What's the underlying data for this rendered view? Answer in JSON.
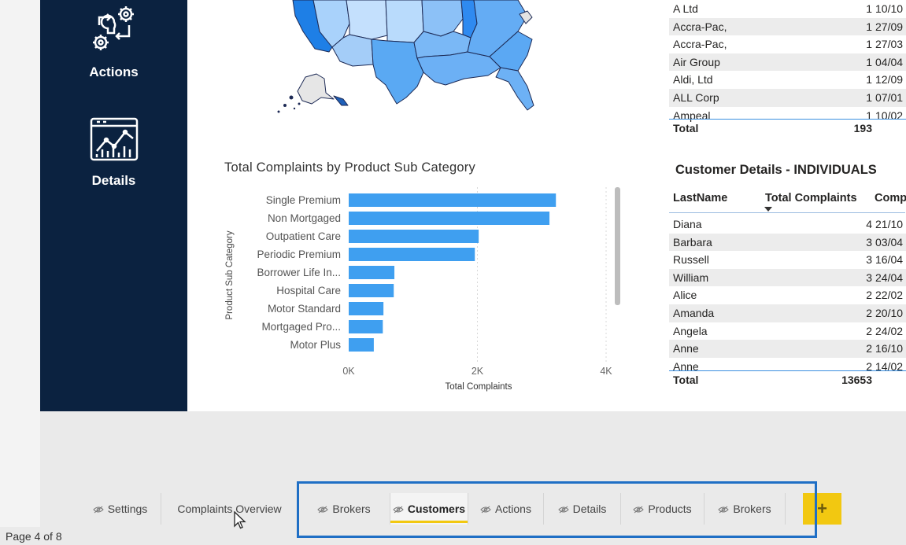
{
  "nav": {
    "actions_label": "Actions",
    "details_label": "Details"
  },
  "bar_chart": {
    "title": "Total Complaints by Product Sub Category"
  },
  "chart_data": {
    "type": "bar",
    "orientation": "horizontal",
    "title": "Total Complaints by Product Sub Category",
    "xlabel": "Total Complaints",
    "ylabel": "Product Sub Category",
    "categories": [
      "Single Premium",
      "Non Mortgaged",
      "Outpatient Care",
      "Periodic Premium",
      "Borrower Life In...",
      "Hospital Care",
      "Motor Standard",
      "Mortgaged Pro...",
      "Motor Plus"
    ],
    "values": [
      3220,
      3120,
      2020,
      1960,
      710,
      700,
      540,
      530,
      390
    ],
    "xticks": [
      "0K",
      "2K",
      "4K"
    ],
    "xlim": [
      0,
      4000
    ],
    "grid": true,
    "color": "#3f9ff0"
  },
  "company_table": {
    "rows": [
      {
        "name": "A Ltd",
        "count": "1",
        "date": "10/10"
      },
      {
        "name": "Accra-Pac,",
        "count": "1",
        "date": "27/09"
      },
      {
        "name": "Accra-Pac,",
        "count": "1",
        "date": "27/03"
      },
      {
        "name": "Air Group",
        "count": "1",
        "date": "04/04"
      },
      {
        "name": "Aldi, Ltd",
        "count": "1",
        "date": "12/09"
      },
      {
        "name": "ALL Corp",
        "count": "1",
        "date": "07/01"
      },
      {
        "name": "Ampeal",
        "count": "1",
        "date": "10/02"
      }
    ],
    "total_label": "Total",
    "total_value": "193"
  },
  "individuals_table": {
    "title": "Customer Details - INDIVIDUALS",
    "headers": [
      "LastName",
      "Total Complaints",
      "Comp"
    ],
    "rows": [
      {
        "name": "Diana",
        "count": "4",
        "date": "21/10"
      },
      {
        "name": "Barbara",
        "count": "3",
        "date": "03/04"
      },
      {
        "name": "Russell",
        "count": "3",
        "date": "16/04"
      },
      {
        "name": "William",
        "count": "3",
        "date": "24/04"
      },
      {
        "name": "Alice",
        "count": "2",
        "date": "22/02"
      },
      {
        "name": "Amanda",
        "count": "2",
        "date": "20/10"
      },
      {
        "name": "Angela",
        "count": "2",
        "date": "24/02"
      },
      {
        "name": "Anne",
        "count": "2",
        "date": "16/10"
      },
      {
        "name": "Anne",
        "count": "2",
        "date": "14/02"
      }
    ],
    "total_label": "Total",
    "total_value": "13653"
  },
  "tabs": [
    {
      "label": "Settings",
      "hidden": true,
      "active": false
    },
    {
      "label": "Complaints Overview",
      "hidden": false,
      "active": false
    },
    {
      "label": "Brokers",
      "hidden": true,
      "active": false
    },
    {
      "label": "Customers",
      "hidden": true,
      "active": true
    },
    {
      "label": "Actions",
      "hidden": true,
      "active": false
    },
    {
      "label": "Details",
      "hidden": true,
      "active": false
    },
    {
      "label": "Products",
      "hidden": true,
      "active": false
    },
    {
      "label": "Brokers",
      "hidden": true,
      "active": false
    }
  ],
  "add_tab_label": "+",
  "status": {
    "page_indicator": "Page 4 of 8"
  },
  "colors": {
    "nav_bg": "#0b2240",
    "bar": "#3f9ff0",
    "active_tab_accent": "#f2c811",
    "highlight_box": "#1f6fc5"
  }
}
